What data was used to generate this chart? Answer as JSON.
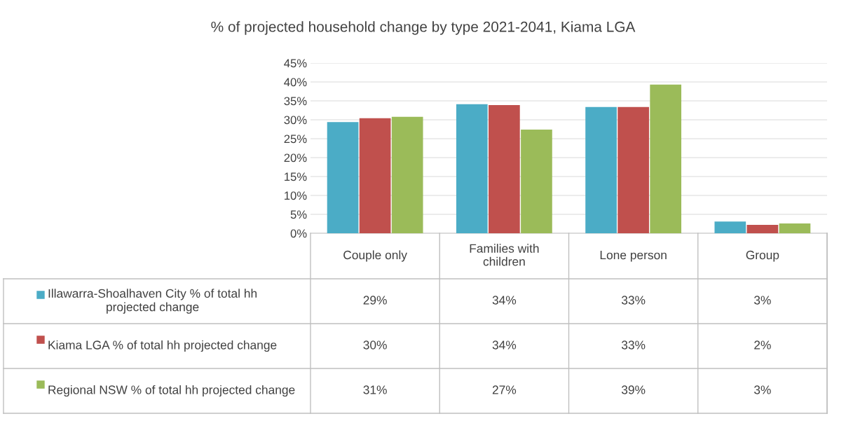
{
  "chart_data": {
    "type": "bar",
    "title": "% of projected household change by type 2021-2041, Kiama LGA",
    "categories": [
      "Couple only",
      "Families with children",
      "Lone person",
      "Group"
    ],
    "series": [
      {
        "name": "Illawarra-Shoalhaven City % of total hh projected change",
        "color": "#4bacc6",
        "values": [
          29.4,
          34.1,
          33.4,
          3.1
        ],
        "value_labels": [
          "29%",
          "34%",
          "33%",
          "3%"
        ]
      },
      {
        "name": "Kiama LGA % of total hh projected change",
        "color": "#c0504d",
        "values": [
          30.4,
          33.9,
          33.4,
          2.2
        ],
        "value_labels": [
          "30%",
          "34%",
          "33%",
          "2%"
        ]
      },
      {
        "name": "Regional NSW % of total hh projected change",
        "color": "#9bbb59",
        "values": [
          30.8,
          27.4,
          39.3,
          2.6
        ],
        "value_labels": [
          "31%",
          "27%",
          "39%",
          "3%"
        ]
      }
    ],
    "ylim": [
      0,
      45
    ],
    "yticks": [
      {
        "value": 0,
        "label": "0%"
      },
      {
        "value": 5,
        "label": "5%"
      },
      {
        "value": 10,
        "label": "10%"
      },
      {
        "value": 15,
        "label": "15%"
      },
      {
        "value": 20,
        "label": "20%"
      },
      {
        "value": 25,
        "label": "25%"
      },
      {
        "value": 30,
        "label": "30%"
      },
      {
        "value": 35,
        "label": "35%"
      },
      {
        "value": 40,
        "label": "40%"
      },
      {
        "value": 45,
        "label": "45%"
      }
    ],
    "grid": "y",
    "legend": "bottom"
  }
}
